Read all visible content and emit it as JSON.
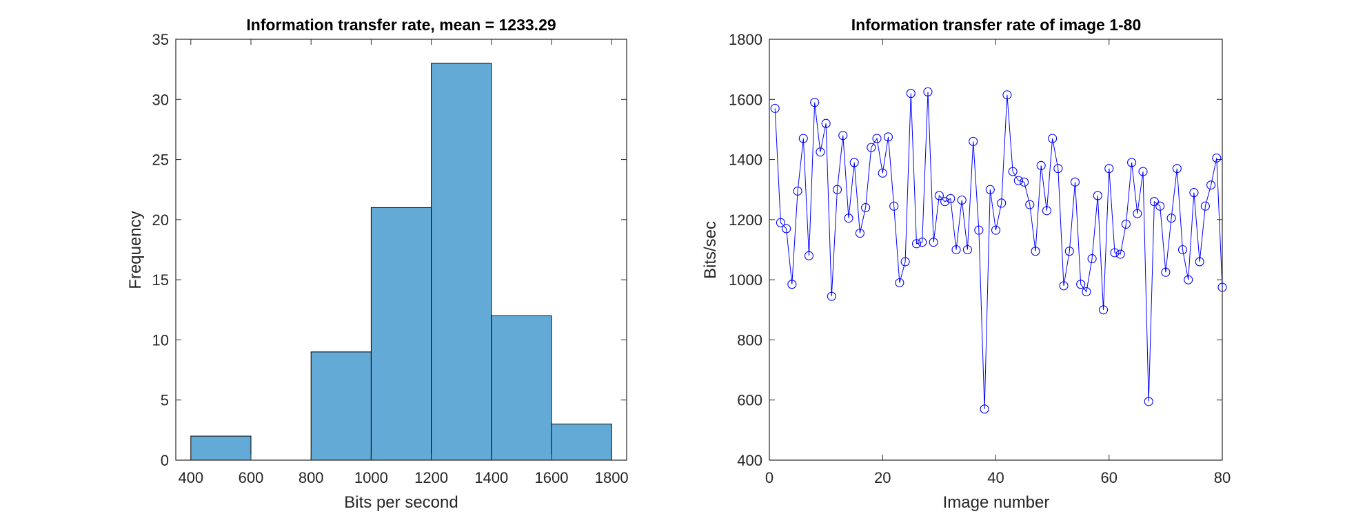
{
  "chart_data": [
    {
      "type": "bar",
      "title": "Information transfer rate, mean = 1233.29",
      "xlabel": "Bits per second",
      "ylabel": "Frequency",
      "xlim": [
        350,
        1850
      ],
      "ylim": [
        0,
        35
      ],
      "xticks": [
        "400",
        "600",
        "800",
        "1000",
        "1200",
        "1400",
        "1600",
        "1800"
      ],
      "yticks": [
        "0",
        "5",
        "10",
        "15",
        "20",
        "25",
        "30",
        "35"
      ],
      "bins": [
        {
          "from": 400,
          "to": 600,
          "count": 2
        },
        {
          "from": 600,
          "to": 800,
          "count": 0
        },
        {
          "from": 800,
          "to": 1000,
          "count": 9
        },
        {
          "from": 1000,
          "to": 1200,
          "count": 21
        },
        {
          "from": 1200,
          "to": 1400,
          "count": 33
        },
        {
          "from": 1400,
          "to": 1600,
          "count": 12
        },
        {
          "from": 1600,
          "to": 1800,
          "count": 3
        }
      ],
      "bar_color": "#64AAD7",
      "edge_color": "#000000"
    },
    {
      "type": "line",
      "title": "Information transfer rate of image 1-80",
      "xlabel": "Image number",
      "ylabel": "Bits/sec",
      "xlim": [
        0,
        80
      ],
      "ylim": [
        400,
        1800
      ],
      "xticks": [
        "0",
        "20",
        "40",
        "60",
        "80"
      ],
      "yticks": [
        "400",
        "600",
        "800",
        "1000",
        "1200",
        "1400",
        "1600",
        "1800"
      ],
      "marker": "circle",
      "color": "#0000FF",
      "x": [
        1,
        2,
        3,
        4,
        5,
        6,
        7,
        8,
        9,
        10,
        11,
        12,
        13,
        14,
        15,
        16,
        17,
        18,
        19,
        20,
        21,
        22,
        23,
        24,
        25,
        26,
        27,
        28,
        29,
        30,
        31,
        32,
        33,
        34,
        35,
        36,
        37,
        38,
        39,
        40,
        41,
        42,
        43,
        44,
        45,
        46,
        47,
        48,
        49,
        50,
        51,
        52,
        53,
        54,
        55,
        56,
        57,
        58,
        59,
        60,
        61,
        62,
        63,
        64,
        65,
        66,
        67,
        68,
        69,
        70,
        71,
        72,
        73,
        74,
        75,
        76,
        77,
        78,
        79,
        80
      ],
      "y": [
        1570,
        1190,
        1170,
        985,
        1295,
        1470,
        1080,
        1590,
        1425,
        1520,
        945,
        1300,
        1480,
        1205,
        1390,
        1155,
        1240,
        1440,
        1470,
        1355,
        1475,
        1245,
        990,
        1060,
        1620,
        1120,
        1125,
        1625,
        1125,
        1280,
        1260,
        1270,
        1100,
        1265,
        1100,
        1460,
        1165,
        570,
        1300,
        1165,
        1255,
        1615,
        1360,
        1330,
        1325,
        1250,
        1095,
        1380,
        1230,
        1470,
        1370,
        980,
        1095,
        1325,
        985,
        960,
        1070,
        1280,
        900,
        1370,
        1090,
        1085,
        1185,
        1390,
        1220,
        1360,
        595,
        1260,
        1245,
        1025,
        1205,
        1370,
        1100,
        1000,
        1290,
        1060,
        1245,
        1315,
        1405,
        975
      ]
    }
  ]
}
